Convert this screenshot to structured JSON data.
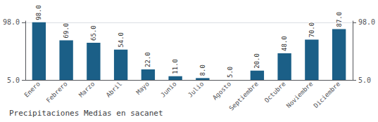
{
  "chart_data": {
    "type": "bar",
    "title": "Precipitaciones Medias en sacanet",
    "categories": [
      "Enero",
      "Febrero",
      "Marzo",
      "Abril",
      "Mayo",
      "Junio",
      "Julio",
      "Agosto",
      "Septiembre",
      "Octubre",
      "Noviembre",
      "Diciembre"
    ],
    "values": [
      98.0,
      69.0,
      65.0,
      54.0,
      22.0,
      11.0,
      8.0,
      5.0,
      20.0,
      48.0,
      70.0,
      87.0
    ],
    "value_labels": [
      "98.0",
      "69.0",
      "65.0",
      "54.0",
      "22.0",
      "11.0",
      "8.0",
      "5.0",
      "20.0",
      "48.0",
      "70.0",
      "87.0"
    ],
    "data_labels": true,
    "color": "#1b5f87",
    "ylim": [
      5.0,
      100.0
    ],
    "yticks": [
      {
        "value": 5.0,
        "label": "5.0"
      },
      {
        "value": 98.0,
        "label": "98.0"
      }
    ],
    "y2lim": [
      5.0,
      100.0
    ],
    "y2ticks": [
      {
        "value": 5.0,
        "label": "5.0"
      },
      {
        "value": 98.0,
        "label": "98.0"
      }
    ],
    "grid": true
  }
}
